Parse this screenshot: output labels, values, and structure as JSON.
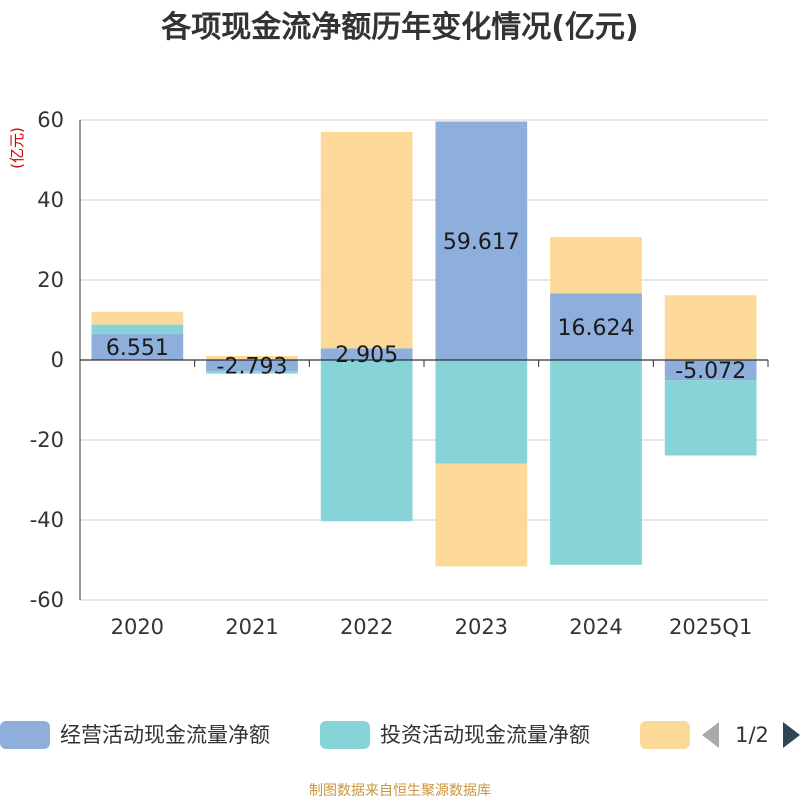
{
  "chart_data": {
    "type": "bar",
    "stacked": true,
    "title": "各项现金流净额历年变化情况(亿元)",
    "ylabel": "(亿元)",
    "categories": [
      "2020",
      "2021",
      "2022",
      "2023",
      "2024",
      "2025Q1"
    ],
    "ylim": [
      -60,
      60
    ],
    "yticks": [
      -60,
      -40,
      -20,
      0,
      20,
      40,
      60
    ],
    "series": [
      {
        "name": "经营活动现金流量净额",
        "color": "#8eaedb",
        "values": [
          6.551,
          -2.793,
          2.905,
          59.617,
          16.624,
          -5.072
        ]
      },
      {
        "name": "投资活动现金流量净额",
        "color": "#86d4d8",
        "values": [
          2.3,
          -0.6,
          -40.3,
          -25.9,
          -51.2,
          -18.8
        ]
      },
      {
        "name": "",
        "color": "#fdd999",
        "values": [
          3.2,
          1.0,
          54.1,
          -25.7,
          14.1,
          16.2
        ]
      }
    ],
    "data_labels": [
      "6.551",
      "-2.793",
      "2.905",
      "59.617",
      "16.624",
      "-5.072"
    ]
  },
  "legend": {
    "page": "1/2"
  },
  "source": "制图数据来自恒生聚源数据库"
}
